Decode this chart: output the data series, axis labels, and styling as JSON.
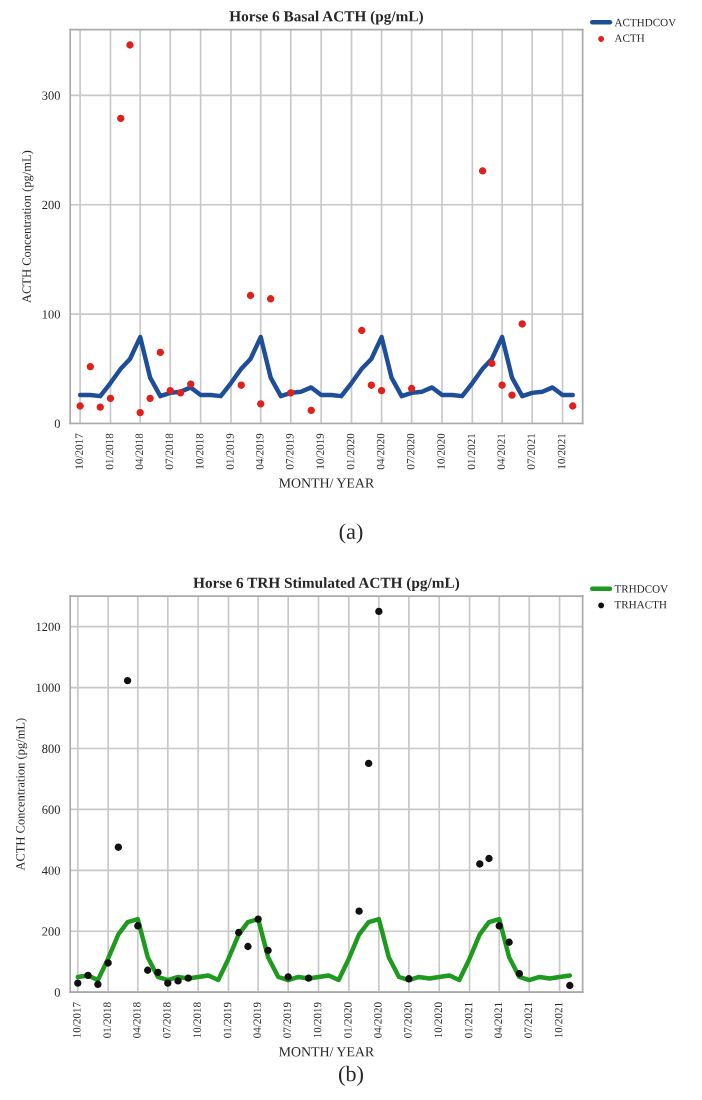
{
  "chart_data": [
    {
      "type": "line",
      "title": "Horse 6 Basal ACTH (pg/mL)",
      "xlabel": "MONTH/ YEAR",
      "ylabel": "ACTH Concentration (pg/mL)",
      "xlim": [
        "2017-09",
        "2021-12"
      ],
      "ylim": [
        0,
        360
      ],
      "yticks": [
        0,
        100,
        200,
        300
      ],
      "xticks": [
        {
          "value": "2017-10",
          "label": "10/2017"
        },
        {
          "value": "2018-01",
          "label": "01/2018"
        },
        {
          "value": "2018-04",
          "label": "04/2018"
        },
        {
          "value": "2018-07",
          "label": "07/2018"
        },
        {
          "value": "2018-10",
          "label": "10/2018"
        },
        {
          "value": "2019-01",
          "label": "01/2019"
        },
        {
          "value": "2019-04",
          "label": "04/2019"
        },
        {
          "value": "2019-07",
          "label": "07/2019"
        },
        {
          "value": "2019-10",
          "label": "10/2019"
        },
        {
          "value": "2020-01",
          "label": "01/2020"
        },
        {
          "value": "2020-04",
          "label": "04/2020"
        },
        {
          "value": "2020-07",
          "label": "07/2020"
        },
        {
          "value": "2020-10",
          "label": "10/2020"
        },
        {
          "value": "2021-01",
          "label": "01/2021"
        },
        {
          "value": "2021-04",
          "label": "04/2021"
        },
        {
          "value": "2021-07",
          "label": "07/2021"
        },
        {
          "value": "2021-10",
          "label": "10/2021"
        }
      ],
      "grid": true,
      "legend": "top right",
      "annotations": [
        "(a)"
      ],
      "series": [
        {
          "name": "ACTHDCOV",
          "color": "#1f4e99",
          "x": [
            "2017-10",
            "2017-11",
            "2017-12",
            "2018-01",
            "2018-02",
            "2018-03",
            "2018-04",
            "2018-05",
            "2018-06",
            "2018-07",
            "2018-08",
            "2018-09",
            "2018-10",
            "2018-11",
            "2018-12",
            "2019-01",
            "2019-02",
            "2019-03",
            "2019-04",
            "2019-05",
            "2019-06",
            "2019-07",
            "2019-08",
            "2019-09",
            "2019-10",
            "2019-11",
            "2019-12",
            "2020-01",
            "2020-02",
            "2020-03",
            "2020-04",
            "2020-05",
            "2020-06",
            "2020-07",
            "2020-08",
            "2020-09",
            "2020-10",
            "2020-11",
            "2020-12",
            "2021-01",
            "2021-02",
            "2021-03",
            "2021-04",
            "2021-05",
            "2021-06",
            "2021-07",
            "2021-08",
            "2021-09",
            "2021-10",
            "2021-11"
          ],
          "values": [
            26,
            26,
            25,
            37,
            50,
            59,
            79,
            42,
            25,
            28,
            29,
            33,
            26,
            26,
            25,
            37,
            50,
            59,
            79,
            42,
            25,
            28,
            29,
            33,
            26,
            26,
            25,
            37,
            50,
            59,
            79,
            42,
            25,
            28,
            29,
            33,
            26,
            26,
            25,
            37,
            50,
            59,
            79,
            42,
            25,
            28,
            29,
            33,
            26,
            26
          ]
        },
        {
          "name": "ACTH",
          "type": "scatter",
          "color": "#e0201b",
          "x": [
            "2017-10",
            "2017-11",
            "2017-12",
            "2018-01",
            "2018-02",
            "2018-03",
            "2018-04",
            "2018-05",
            "2018-06",
            "2018-07",
            "2018-08",
            "2018-09",
            "2019-02",
            "2019-03",
            "2019-04",
            "2019-05",
            "2019-07",
            "2019-09",
            "2020-02",
            "2020-03",
            "2020-04",
            "2020-07",
            "2021-02",
            "2021-03",
            "2021-04",
            "2021-05",
            "2021-06",
            "2021-11"
          ],
          "values": [
            16,
            52,
            15,
            23,
            279,
            346,
            10,
            23,
            65,
            30,
            28,
            36,
            35,
            117,
            18,
            114,
            28,
            12,
            85,
            35,
            30,
            32,
            231,
            55,
            35,
            26,
            91,
            16
          ]
        }
      ]
    },
    {
      "type": "line",
      "title": "Horse 6 TRH Stimulated ACTH (pg/mL)",
      "xlabel": "MONTH/ YEAR",
      "ylabel": "ACTH Concentration (pg/mL)",
      "xlim": [
        "2017-09-08",
        "2021-12-10"
      ],
      "ylim": [
        0,
        1300
      ],
      "yticks": [
        0,
        200,
        400,
        600,
        800,
        1000,
        1200
      ],
      "xticks": [
        {
          "value": "2017-10",
          "label": "10/2017"
        },
        {
          "value": "2018-01",
          "label": "01/2018"
        },
        {
          "value": "2018-04",
          "label": "04/2018"
        },
        {
          "value": "2018-07",
          "label": "07/2018"
        },
        {
          "value": "2018-10",
          "label": "10/2018"
        },
        {
          "value": "2019-01",
          "label": "01/2019"
        },
        {
          "value": "2019-04",
          "label": "04/2019"
        },
        {
          "value": "2019-07",
          "label": "07/2019"
        },
        {
          "value": "2019-10",
          "label": "10/2019"
        },
        {
          "value": "2020-01",
          "label": "01/2020"
        },
        {
          "value": "2020-04",
          "label": "04/2020"
        },
        {
          "value": "2020-07",
          "label": "07/2020"
        },
        {
          "value": "2020-10",
          "label": "10/2020"
        },
        {
          "value": "2021-01",
          "label": "01/2021"
        },
        {
          "value": "2021-04",
          "label": "04/2021"
        },
        {
          "value": "2021-07",
          "label": "07/2021"
        },
        {
          "value": "2021-10",
          "label": "10/2021"
        }
      ],
      "grid": true,
      "legend": "top right",
      "annotations": [
        "(b)"
      ],
      "series": [
        {
          "name": "TRHDCOV",
          "color": "#1e9a1e",
          "x": [
            "2017-10",
            "2017-11",
            "2017-12",
            "2018-01",
            "2018-02",
            "2018-03",
            "2018-04",
            "2018-05",
            "2018-06",
            "2018-07",
            "2018-08",
            "2018-09",
            "2018-10",
            "2018-11",
            "2018-12",
            "2019-01",
            "2019-02",
            "2019-03",
            "2019-04",
            "2019-05",
            "2019-06",
            "2019-07",
            "2019-08",
            "2019-09",
            "2019-10",
            "2019-11",
            "2019-12",
            "2020-01",
            "2020-02",
            "2020-03",
            "2020-04",
            "2020-05",
            "2020-06",
            "2020-07",
            "2020-08",
            "2020-09",
            "2020-10",
            "2020-11",
            "2020-12",
            "2021-01",
            "2021-02",
            "2021-03",
            "2021-04",
            "2021-05",
            "2021-06",
            "2021-07",
            "2021-08",
            "2021-09",
            "2021-10",
            "2021-11"
          ],
          "values": [
            50,
            55,
            40,
            110,
            190,
            230,
            240,
            115,
            50,
            40,
            50,
            45,
            50,
            55,
            40,
            110,
            190,
            230,
            240,
            115,
            50,
            40,
            50,
            45,
            50,
            55,
            40,
            110,
            190,
            230,
            240,
            115,
            50,
            40,
            50,
            45,
            50,
            55,
            40,
            110,
            190,
            230,
            240,
            115,
            50,
            40,
            50,
            45,
            50,
            55
          ]
        },
        {
          "name": "TRHACTH",
          "type": "scatter",
          "color": "#111111",
          "x": [
            "2017-10",
            "2017-11",
            "2017-12",
            "2018-01",
            "2018-02",
            "2018-03",
            "2018-04",
            "2018-05",
            "2018-06",
            "2018-07",
            "2018-08",
            "2018-09",
            "2019-02",
            "2019-03",
            "2019-04",
            "2019-05",
            "2019-07",
            "2019-09",
            "2020-02",
            "2020-03",
            "2020-04",
            "2020-07",
            "2021-02",
            "2021-03",
            "2021-04",
            "2021-05",
            "2021-06",
            "2021-11"
          ],
          "values": [
            30,
            55,
            26,
            96,
            476,
            1023,
            218,
            72,
            65,
            30,
            37,
            46,
            196,
            150,
            240,
            137,
            50,
            46,
            266,
            751,
            1250,
            44,
            421,
            439,
            218,
            164,
            61,
            22
          ]
        }
      ]
    }
  ]
}
